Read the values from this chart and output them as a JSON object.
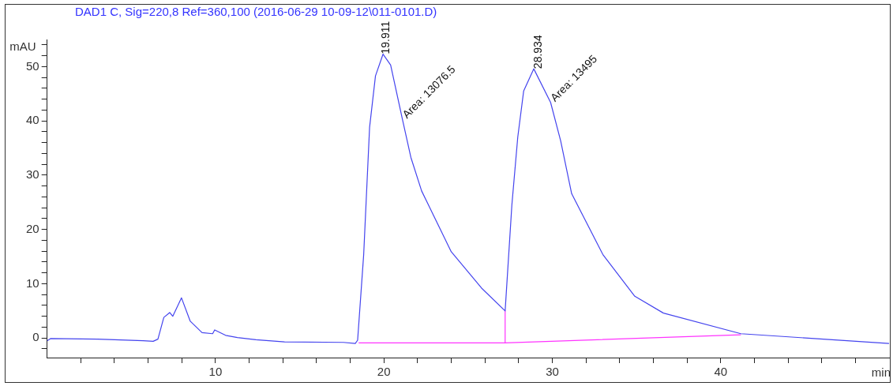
{
  "chart_data": {
    "type": "line",
    "title": "DAD1 C, Sig=220,8 Ref=360,100 (2016-06-29 10-09-12\\011-0101.D)",
    "xlabel": "min",
    "ylabel": "mAU",
    "xlim": [
      0,
      50
    ],
    "ylim": [
      -3.6,
      55
    ],
    "xticks": [
      {
        "value": 2,
        "label": null
      },
      {
        "value": 4,
        "label": null
      },
      {
        "value": 6,
        "label": null
      },
      {
        "value": 8,
        "label": null
      },
      10,
      {
        "value": 12,
        "label": null
      },
      {
        "value": 14,
        "label": null
      },
      {
        "value": 16,
        "label": null
      },
      {
        "value": 18,
        "label": null
      },
      20,
      {
        "value": 22,
        "label": null
      },
      {
        "value": 24,
        "label": null
      },
      {
        "value": 26,
        "label": null
      },
      {
        "value": 28,
        "label": null
      },
      30,
      {
        "value": 32,
        "label": null
      },
      {
        "value": 34,
        "label": null
      },
      {
        "value": 36,
        "label": null
      },
      {
        "value": 38,
        "label": null
      },
      40,
      {
        "value": 42,
        "label": null
      },
      {
        "value": 44,
        "label": null
      },
      {
        "value": 46,
        "label": null
      },
      {
        "value": 48,
        "label": null
      }
    ],
    "yticks": [
      {
        "value": -2,
        "label": null
      },
      0,
      {
        "value": 2,
        "label": null
      },
      {
        "value": 4,
        "label": null
      },
      {
        "value": 6,
        "label": null
      },
      {
        "value": 8,
        "label": null
      },
      10,
      {
        "value": 12,
        "label": null
      },
      {
        "value": 14,
        "label": null
      },
      {
        "value": 16,
        "label": null
      },
      {
        "value": 18,
        "label": null
      },
      20,
      {
        "value": 22,
        "label": null
      },
      {
        "value": 24,
        "label": null
      },
      {
        "value": 26,
        "label": null
      },
      {
        "value": 28,
        "label": null
      },
      30,
      {
        "value": 32,
        "label": null
      },
      {
        "value": 34,
        "label": null
      },
      {
        "value": 36,
        "label": null
      },
      {
        "value": 38,
        "label": null
      },
      40,
      {
        "value": 42,
        "label": null
      },
      {
        "value": 44,
        "label": null
      },
      {
        "value": 46,
        "label": null
      },
      {
        "value": 48,
        "label": null
      },
      50,
      {
        "value": 52,
        "label": null
      },
      {
        "value": 54,
        "label": null
      }
    ],
    "grid": false,
    "legend": false,
    "marker": "none",
    "line_style": "solid",
    "series": [
      {
        "color": "#4444ee",
        "x": [
          0,
          0.2,
          3,
          5.7,
          6.3,
          6.58,
          6.93,
          7.28,
          7.46,
          7.98,
          8.5,
          9.2,
          9.83,
          9.95,
          10.6,
          11.3,
          12.4,
          14.1,
          17.6,
          18.3,
          18.44,
          18.8,
          19.15,
          19.5,
          19.95,
          20.4,
          21.1,
          21.6,
          22.24,
          24.0,
          25.8,
          27.2,
          27.6,
          27.95,
          28.3,
          28.9,
          29.9,
          30.5,
          31.15,
          33.0,
          34.9,
          36.6,
          41.2,
          50
        ],
        "values": [
          -0.5,
          -0.1,
          -0.2,
          -0.5,
          -0.6,
          -0.2,
          3.8,
          4.7,
          4.0,
          7.4,
          3.1,
          1.0,
          0.8,
          1.5,
          0.5,
          0.1,
          -0.3,
          -0.7,
          -0.8,
          -1.0,
          -0.4,
          15.4,
          38.8,
          48.3,
          52.3,
          50.3,
          40.3,
          33.3,
          27.1,
          15.9,
          9.2,
          5.0,
          24.5,
          37,
          45.5,
          49.6,
          43.4,
          36.3,
          26.6,
          15.4,
          7.7,
          4.6,
          0.8,
          -1.0
        ]
      },
      {
        "color": "#ff33ff",
        "x": [
          18.5,
          27.2,
          27.2,
          27.2,
          41.2
        ],
        "values": [
          -0.9,
          -0.9,
          5.0,
          -0.9,
          0.6
        ]
      }
    ],
    "annotations": [
      {
        "text": "19.911",
        "x": 19.911,
        "y": 52.3
      },
      {
        "text": "Area: 13076.5",
        "x": 21.1,
        "y": 40.3
      },
      {
        "text": "28.934",
        "x": 28.934,
        "y": 49.6
      },
      {
        "text": "Area: 13495",
        "x": 29.9,
        "y": 43.4
      }
    ]
  }
}
